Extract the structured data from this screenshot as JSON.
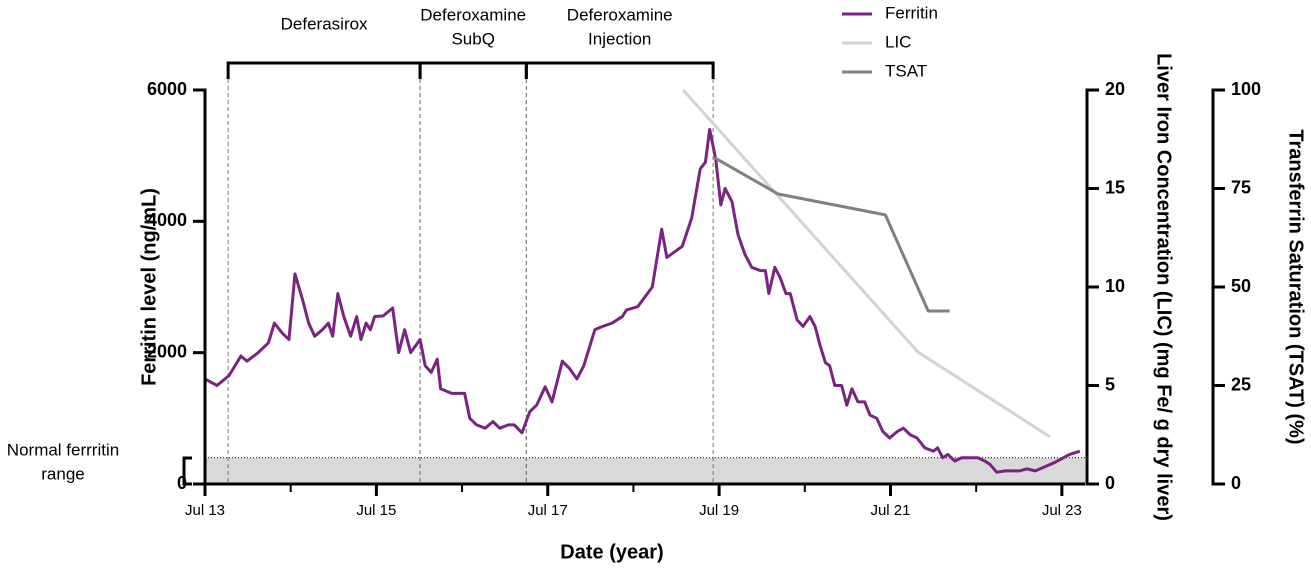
{
  "chart_data": {
    "type": "line",
    "xlabel": "Date (year)",
    "ylabel": "Ferritin level (ng/mL)",
    "y2label": "Liver Iron Concentration (LIC) (mg Fe/ g dry liver)",
    "y3label": "Transferrin Saturation (TSAT) (%)",
    "xlim": [
      2013.5,
      2023.77
    ],
    "xticks": [
      {
        "value": 2013.5,
        "label": "Jul 13"
      },
      {
        "value": 2015.5,
        "label": "Jul 15"
      },
      {
        "value": 2017.5,
        "label": "Jul 17"
      },
      {
        "value": 2019.5,
        "label": "Jul 19"
      },
      {
        "value": 2021.5,
        "label": "Jul 21"
      },
      {
        "value": 2023.5,
        "label": "Jul 23"
      }
    ],
    "ylim": [
      0,
      6000
    ],
    "yticks": [
      0,
      2000,
      4000,
      6000
    ],
    "y2lim": [
      0,
      20
    ],
    "y2ticks": [
      0,
      5,
      10,
      15,
      20
    ],
    "y3lim": [
      0,
      100
    ],
    "y3ticks": [
      0,
      25,
      50,
      75,
      100
    ],
    "periods": [
      {
        "label": [
          "Deferasirox"
        ],
        "start": 2013.77,
        "end": 2016.01
      },
      {
        "label": [
          "Deferoxamine",
          "SubQ"
        ],
        "start": 2016.01,
        "end": 2017.25
      },
      {
        "label": [
          "Deferoxamine",
          "Injection"
        ],
        "start": 2017.25,
        "end": 2019.43
      }
    ],
    "normal_range": {
      "label": [
        "Normal ferrritin",
        "range"
      ],
      "range": [
        0,
        400
      ]
    },
    "series": [
      {
        "name": "Ferritin",
        "color": "#7b2382",
        "axis": "y",
        "x": [
          2013.5,
          2013.64,
          2013.78,
          2013.92,
          2013.99,
          2014.12,
          2014.24,
          2014.31,
          2014.4,
          2014.48,
          2014.55,
          2014.64,
          2014.71,
          2014.78,
          2014.87,
          2014.94,
          2014.99,
          2015.05,
          2015.12,
          2015.2,
          2015.27,
          2015.32,
          2015.38,
          2015.43,
          2015.48,
          2015.58,
          2015.69,
          2015.76,
          2015.83,
          2015.9,
          2016.01,
          2016.07,
          2016.14,
          2016.21,
          2016.25,
          2016.38,
          2016.53,
          2016.59,
          2016.67,
          2016.77,
          2016.86,
          2016.94,
          2017.04,
          2017.11,
          2017.2,
          2017.29,
          2017.37,
          2017.47,
          2017.55,
          2017.67,
          2017.76,
          2017.84,
          2017.92,
          2018.05,
          2018.14,
          2018.25,
          2018.37,
          2018.42,
          2018.55,
          2018.72,
          2018.83,
          2018.89,
          2019.07,
          2019.18,
          2019.28,
          2019.34,
          2019.39,
          2019.46,
          2019.52,
          2019.57,
          2019.65,
          2019.72,
          2019.8,
          2019.88,
          2019.98,
          2020.04,
          2020.08,
          2020.15,
          2020.21,
          2020.28,
          2020.33,
          2020.41,
          2020.48,
          2020.56,
          2020.62,
          2020.68,
          2020.74,
          2020.79,
          2020.85,
          2020.93,
          2020.99,
          2021.05,
          2021.12,
          2021.2,
          2021.26,
          2021.34,
          2021.41,
          2021.49,
          2021.58,
          2021.65,
          2021.73,
          2021.81,
          2021.9,
          2022.0,
          2022.05,
          2022.11,
          2022.17,
          2022.25,
          2022.33,
          2022.43,
          2022.52,
          2022.6,
          2022.66,
          2022.74,
          2022.84,
          2022.92,
          2023.01,
          2023.09,
          2023.19,
          2023.42,
          2023.59,
          2023.71
        ],
        "values": [
          1600,
          1500,
          1650,
          1950,
          1870,
          2000,
          2150,
          2450,
          2300,
          2200,
          3200,
          2800,
          2450,
          2250,
          2350,
          2450,
          2250,
          2900,
          2550,
          2250,
          2550,
          2200,
          2450,
          2350,
          2550,
          2560,
          2680,
          2000,
          2350,
          2000,
          2200,
          1800,
          1700,
          1900,
          1450,
          1380,
          1380,
          1000,
          900,
          850,
          950,
          850,
          900,
          900,
          780,
          1100,
          1200,
          1480,
          1250,
          1870,
          1750,
          1600,
          1800,
          2350,
          2400,
          2450,
          2550,
          2650,
          2700,
          3000,
          3880,
          3450,
          3620,
          4050,
          4800,
          4900,
          5400,
          4950,
          4250,
          4500,
          4300,
          3800,
          3500,
          3300,
          3250,
          3250,
          2900,
          3300,
          3150,
          2900,
          2900,
          2500,
          2400,
          2550,
          2400,
          2100,
          1850,
          1800,
          1500,
          1500,
          1200,
          1450,
          1250,
          1250,
          1050,
          1000,
          800,
          700,
          800,
          850,
          750,
          700,
          550,
          500,
          550,
          400,
          450,
          350,
          400,
          400,
          400,
          350,
          300,
          180,
          200,
          200,
          200,
          230,
          200,
          330,
          450,
          500
        ]
      },
      {
        "name": "LIC",
        "color": "#d3d3d3",
        "axis": "y2",
        "x": [
          2019.08,
          2021.82,
          2023.36
        ],
        "values": [
          20,
          6.7,
          2.4
        ]
      },
      {
        "name": "TSAT",
        "color": "#808080",
        "axis": "y3",
        "x": [
          2019.43,
          2020.19,
          2021.44,
          2021.94,
          2022.19
        ],
        "values": [
          83,
          73.6,
          68.3,
          43.9,
          43.9
        ]
      }
    ]
  }
}
